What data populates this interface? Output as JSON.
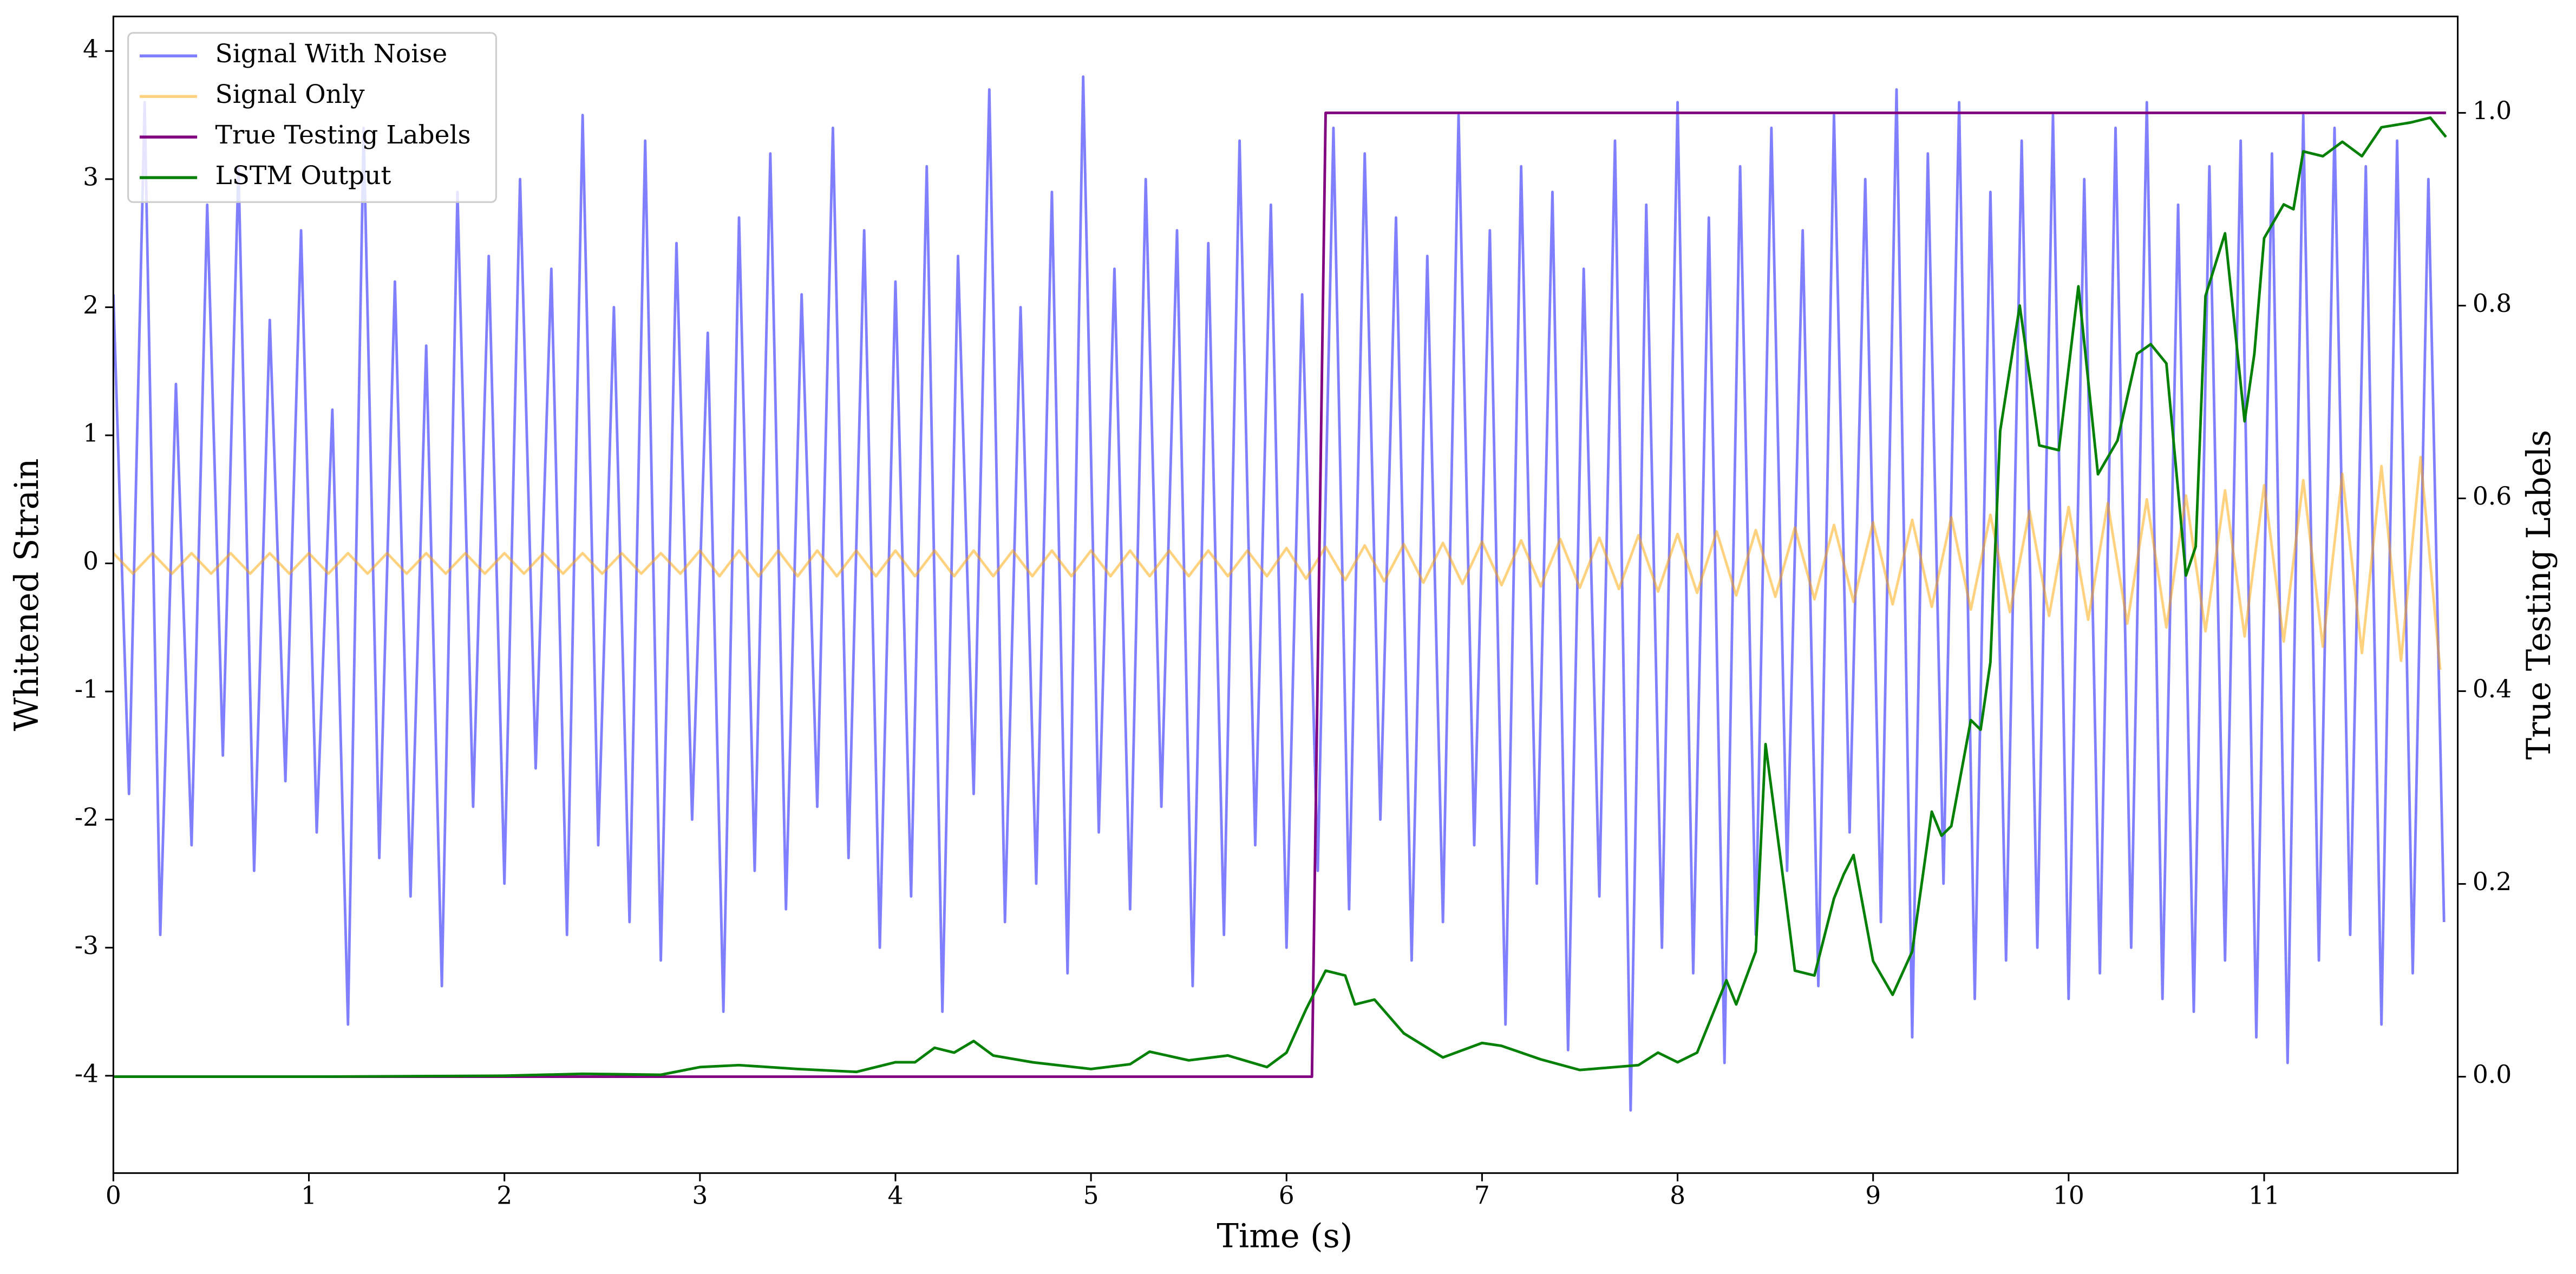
{
  "chart_data": {
    "type": "line",
    "xlabel": "Time (s)",
    "ylabel": "Whitened Strain",
    "y2label": "True Testing Labels",
    "xlim": [
      0,
      11.99
    ],
    "xticks": [
      0,
      1,
      2,
      3,
      4,
      5,
      6,
      7,
      8,
      9,
      10,
      11
    ],
    "ylim": [
      -4.76,
      4.27
    ],
    "yticks": [
      -4,
      -3,
      -2,
      -1,
      0,
      1,
      2,
      3,
      4
    ],
    "y2lim": [
      -0.1,
      1.1
    ],
    "y2ticks": [
      {
        "value": 0,
        "label": "0.0"
      },
      0.2,
      0.4,
      0.6,
      0.8,
      {
        "value": 1,
        "label": "1.0"
      }
    ],
    "legend": "upper left",
    "series": [
      {
        "name": "Signal With Noise",
        "color": "blue",
        "alpha": 0.5,
        "axis": "y",
        "x": [
          0,
          0.08,
          0.16,
          0.24,
          0.32,
          0.4,
          0.48,
          0.56,
          0.64,
          0.72,
          0.8,
          0.88,
          0.96,
          1.04,
          1.12,
          1.2,
          1.28,
          1.36,
          1.44,
          1.52,
          1.6,
          1.68,
          1.76,
          1.84,
          1.92,
          2,
          2.08,
          2.16,
          2.24,
          2.32,
          2.4,
          2.48,
          2.56,
          2.64,
          2.72,
          2.8,
          2.88,
          2.96,
          3.04,
          3.12,
          3.2,
          3.28,
          3.36,
          3.44,
          3.52,
          3.6,
          3.68,
          3.76,
          3.84,
          3.92,
          4,
          4.08,
          4.16,
          4.24,
          4.32,
          4.4,
          4.48,
          4.56,
          4.64,
          4.72,
          4.8,
          4.88,
          4.96,
          5.04,
          5.12,
          5.2,
          5.28,
          5.36,
          5.44,
          5.52,
          5.6,
          5.68,
          5.76,
          5.84,
          5.92,
          6,
          6.08,
          6.16,
          6.24,
          6.32,
          6.4,
          6.48,
          6.56,
          6.64,
          6.72,
          6.8,
          6.88,
          6.96,
          7.04,
          7.12,
          7.2,
          7.28,
          7.36,
          7.44,
          7.52,
          7.6,
          7.68,
          7.76,
          7.84,
          7.92,
          8,
          8.08,
          8.16,
          8.24,
          8.32,
          8.4,
          8.48,
          8.56,
          8.64,
          8.72,
          8.8,
          8.88,
          8.96,
          9.04,
          9.12,
          9.2,
          9.28,
          9.36,
          9.44,
          9.52,
          9.6,
          9.68,
          9.76,
          9.84,
          9.92,
          10,
          10.08,
          10.16,
          10.24,
          10.32,
          10.4,
          10.48,
          10.56,
          10.64,
          10.72,
          10.8,
          10.88,
          10.96,
          11.04,
          11.12,
          11.2,
          11.28,
          11.36,
          11.44,
          11.52,
          11.6,
          11.68,
          11.76,
          11.84,
          11.92
        ],
        "values": [
          2.1,
          -1.8,
          3.6,
          -2.9,
          1.4,
          -2.2,
          2.8,
          -1.5,
          3.1,
          -2.4,
          1.9,
          -1.7,
          2.6,
          -2.1,
          1.2,
          -3.6,
          3.4,
          -2.3,
          2.2,
          -2.6,
          1.7,
          -3.3,
          2.9,
          -1.9,
          2.4,
          -2.5,
          3.0,
          -1.6,
          2.3,
          -2.9,
          3.5,
          -2.2,
          2.0,
          -2.8,
          3.3,
          -3.1,
          2.5,
          -2.0,
          1.8,
          -3.5,
          2.7,
          -2.4,
          3.2,
          -2.7,
          2.1,
          -1.9,
          3.4,
          -2.3,
          2.6,
          -3.0,
          2.2,
          -2.6,
          3.1,
          -3.5,
          2.4,
          -1.8,
          3.7,
          -2.8,
          2.0,
          -2.5,
          2.9,
          -3.2,
          3.8,
          -2.1,
          2.3,
          -2.7,
          3.0,
          -1.9,
          2.6,
          -3.3,
          2.5,
          -2.9,
          3.3,
          -2.2,
          2.8,
          -3.0,
          2.1,
          -2.4,
          3.4,
          -2.7,
          3.2,
          -2.0,
          2.7,
          -3.1,
          2.4,
          -2.8,
          3.5,
          -2.2,
          2.6,
          -3.6,
          3.1,
          -2.5,
          2.9,
          -3.8,
          2.3,
          -2.6,
          3.3,
          -4.27,
          2.8,
          -3.0,
          3.6,
          -3.2,
          2.7,
          -3.9,
          3.1,
          -2.9,
          3.4,
          -2.4,
          2.6,
          -3.3,
          3.5,
          -2.1,
          3.0,
          -2.8,
          3.7,
          -3.7,
          3.2,
          -2.5,
          3.6,
          -3.4,
          2.9,
          -3.1,
          3.3,
          -3.0,
          3.5,
          -3.4,
          3.0,
          -3.2,
          3.4,
          -3.0,
          3.6,
          -3.4,
          2.8,
          -3.5,
          3.1,
          -3.1,
          3.3,
          -3.7,
          3.2,
          -3.9,
          3.5,
          -3.1,
          3.4,
          -2.9,
          3.1,
          -3.6,
          3.3,
          -3.2,
          3.0,
          -2.8
        ]
      },
      {
        "name": "Signal Only",
        "color": "orange",
        "alpha": 0.5,
        "axis": "y",
        "x": [
          0,
          0.1,
          0.2,
          0.3,
          0.4,
          0.5,
          0.6,
          0.7,
          0.8,
          0.9,
          1,
          1.1,
          1.2,
          1.3,
          1.4,
          1.5,
          1.6,
          1.7,
          1.8,
          1.9,
          2,
          2.1,
          2.2,
          2.3,
          2.4,
          2.5,
          2.6,
          2.7,
          2.8,
          2.9,
          3,
          3.1,
          3.2,
          3.3,
          3.4,
          3.5,
          3.6,
          3.7,
          3.8,
          3.9,
          4,
          4.1,
          4.2,
          4.3,
          4.4,
          4.5,
          4.6,
          4.7,
          4.8,
          4.9,
          5,
          5.1,
          5.2,
          5.3,
          5.4,
          5.5,
          5.6,
          5.7,
          5.8,
          5.9,
          6,
          6.1,
          6.2,
          6.3,
          6.4,
          6.5,
          6.6,
          6.7,
          6.8,
          6.9,
          7,
          7.1,
          7.2,
          7.3,
          7.4,
          7.5,
          7.6,
          7.7,
          7.8,
          7.9,
          8,
          8.1,
          8.2,
          8.3,
          8.4,
          8.5,
          8.6,
          8.7,
          8.8,
          8.9,
          9,
          9.1,
          9.2,
          9.3,
          9.4,
          9.5,
          9.6,
          9.7,
          9.8,
          9.9,
          10,
          10.1,
          10.2,
          10.3,
          10.4,
          10.5,
          10.6,
          10.7,
          10.8,
          10.9,
          11,
          11.1,
          11.2,
          11.3,
          11.4,
          11.5,
          11.6,
          11.7,
          11.8,
          11.9
        ],
        "values": [
          0.08,
          -0.08,
          0.08,
          -0.08,
          0.08,
          -0.08,
          0.08,
          -0.08,
          0.08,
          -0.08,
          0.08,
          -0.08,
          0.08,
          -0.08,
          0.08,
          -0.08,
          0.08,
          -0.08,
          0.08,
          -0.08,
          0.08,
          -0.08,
          0.08,
          -0.08,
          0.08,
          -0.08,
          0.08,
          -0.08,
          0.08,
          -0.08,
          0.1,
          -0.1,
          0.1,
          -0.1,
          0.1,
          -0.1,
          0.1,
          -0.1,
          0.1,
          -0.1,
          0.1,
          -0.1,
          0.1,
          -0.1,
          0.1,
          -0.1,
          0.1,
          -0.1,
          0.1,
          -0.1,
          0.1,
          -0.1,
          0.1,
          -0.1,
          0.1,
          -0.1,
          0.1,
          -0.1,
          0.1,
          -0.1,
          0.12,
          -0.12,
          0.13,
          -0.13,
          0.14,
          -0.14,
          0.15,
          -0.15,
          0.16,
          -0.16,
          0.17,
          -0.17,
          0.18,
          -0.18,
          0.19,
          -0.19,
          0.2,
          -0.2,
          0.22,
          -0.22,
          0.23,
          -0.23,
          0.25,
          -0.25,
          0.26,
          -0.26,
          0.28,
          -0.28,
          0.3,
          -0.3,
          0.32,
          -0.32,
          0.34,
          -0.34,
          0.36,
          -0.36,
          0.38,
          -0.38,
          0.41,
          -0.41,
          0.44,
          -0.44,
          0.47,
          -0.47,
          0.5,
          -0.5,
          0.53,
          -0.53,
          0.57,
          -0.57,
          0.61,
          -0.61,
          0.65,
          -0.65,
          0.7,
          -0.7,
          0.76,
          -0.76,
          0.83,
          -0.83
        ]
      },
      {
        "name": "True Testing Labels",
        "color": "purple",
        "alpha": 1,
        "axis": "y2",
        "x": [
          0,
          6.13,
          6.2,
          11.93
        ],
        "values": [
          0,
          0,
          1,
          1
        ]
      },
      {
        "name": "LSTM Output",
        "color": "green",
        "alpha": 1,
        "axis": "y2",
        "x": [
          0,
          1,
          2,
          2.4,
          2.8,
          3,
          3.2,
          3.5,
          3.8,
          4,
          4.1,
          4.2,
          4.3,
          4.4,
          4.5,
          4.7,
          5,
          5.2,
          5.3,
          5.5,
          5.7,
          5.9,
          6,
          6.1,
          6.2,
          6.3,
          6.35,
          6.45,
          6.6,
          6.8,
          7,
          7.1,
          7.3,
          7.5,
          7.8,
          7.9,
          8,
          8.1,
          8.25,
          8.3,
          8.4,
          8.45,
          8.55,
          8.6,
          8.7,
          8.8,
          8.85,
          8.9,
          9,
          9.1,
          9.2,
          9.3,
          9.35,
          9.4,
          9.5,
          9.55,
          9.6,
          9.65,
          9.75,
          9.85,
          9.95,
          10.05,
          10.15,
          10.25,
          10.35,
          10.42,
          10.5,
          10.6,
          10.65,
          10.7,
          10.8,
          10.9,
          10.95,
          11,
          11.1,
          11.15,
          11.2,
          11.3,
          11.4,
          11.5,
          11.6,
          11.75,
          11.85,
          11.93
        ],
        "values": [
          0,
          0,
          0.001,
          0.003,
          0.002,
          0.01,
          0.012,
          0.008,
          0.005,
          0.015,
          0.015,
          0.03,
          0.025,
          0.037,
          0.022,
          0.015,
          0.008,
          0.013,
          0.026,
          0.017,
          0.022,
          0.01,
          0.025,
          0.07,
          0.11,
          0.105,
          0.075,
          0.08,
          0.045,
          0.02,
          0.035,
          0.032,
          0.018,
          0.007,
          0.012,
          0.025,
          0.015,
          0.025,
          0.1,
          0.075,
          0.13,
          0.345,
          0.19,
          0.11,
          0.105,
          0.185,
          0.21,
          0.23,
          0.12,
          0.085,
          0.13,
          0.275,
          0.25,
          0.26,
          0.37,
          0.36,
          0.43,
          0.67,
          0.8,
          0.655,
          0.65,
          0.82,
          0.625,
          0.66,
          0.75,
          0.76,
          0.74,
          0.52,
          0.55,
          0.81,
          0.875,
          0.68,
          0.75,
          0.87,
          0.905,
          0.9,
          0.96,
          0.955,
          0.97,
          0.955,
          0.985,
          0.99,
          0.995,
          0.975
        ]
      }
    ]
  }
}
